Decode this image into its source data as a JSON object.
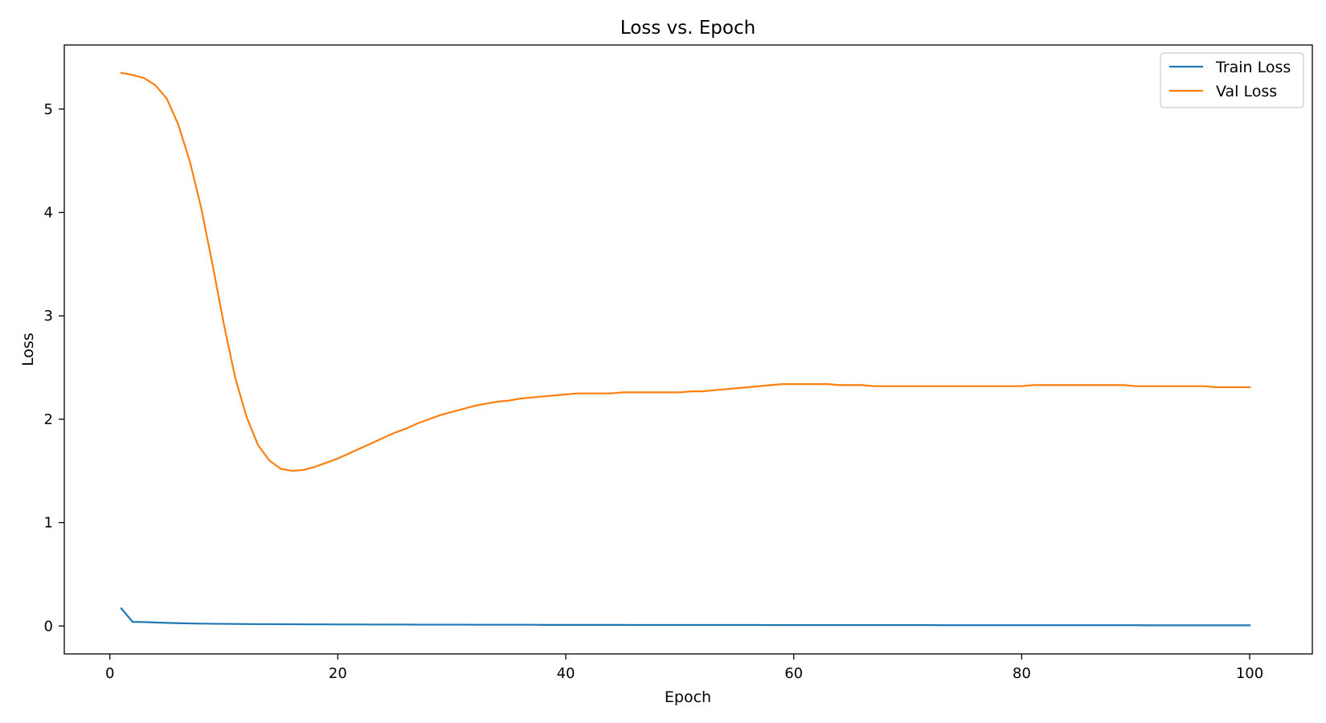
{
  "chart_data": {
    "type": "line",
    "title": "Loss vs. Epoch",
    "xlabel": "Epoch",
    "ylabel": "Loss",
    "xlim": [
      -4,
      105.5
    ],
    "ylim": [
      -0.27,
      5.62
    ],
    "xticks": [
      0,
      20,
      40,
      60,
      80,
      100
    ],
    "yticks": [
      0,
      1,
      2,
      3,
      4,
      5
    ],
    "grid": false,
    "legend_position": "top-right",
    "series": [
      {
        "name": "Train Loss",
        "color": "#1f77b4",
        "x_start": 1,
        "x_step": 1,
        "values": [
          0.17,
          0.04,
          0.038,
          0.034,
          0.03,
          0.027,
          0.025,
          0.023,
          0.022,
          0.021,
          0.02,
          0.019,
          0.018,
          0.018,
          0.017,
          0.017,
          0.016,
          0.016,
          0.016,
          0.015,
          0.015,
          0.015,
          0.014,
          0.014,
          0.014,
          0.014,
          0.013,
          0.013,
          0.013,
          0.013,
          0.013,
          0.012,
          0.012,
          0.012,
          0.012,
          0.012,
          0.012,
          0.011,
          0.011,
          0.011,
          0.011,
          0.011,
          0.011,
          0.011,
          0.011,
          0.01,
          0.01,
          0.01,
          0.01,
          0.01,
          0.01,
          0.01,
          0.01,
          0.01,
          0.01,
          0.01,
          0.01,
          0.009,
          0.009,
          0.009,
          0.009,
          0.009,
          0.009,
          0.009,
          0.009,
          0.009,
          0.009,
          0.009,
          0.009,
          0.009,
          0.009,
          0.009,
          0.008,
          0.008,
          0.008,
          0.008,
          0.008,
          0.008,
          0.008,
          0.008,
          0.008,
          0.008,
          0.008,
          0.008,
          0.008,
          0.008,
          0.008,
          0.008,
          0.008,
          0.008,
          0.007,
          0.007,
          0.007,
          0.007,
          0.007,
          0.007,
          0.007,
          0.007,
          0.007,
          0.007
        ]
      },
      {
        "name": "Val Loss",
        "color": "#ff7f0e",
        "x_start": 1,
        "x_step": 1,
        "values": [
          5.35,
          5.33,
          5.3,
          5.23,
          5.1,
          4.85,
          4.5,
          4.05,
          3.5,
          2.92,
          2.4,
          2.02,
          1.75,
          1.6,
          1.52,
          1.5,
          1.51,
          1.54,
          1.58,
          1.62,
          1.67,
          1.72,
          1.77,
          1.82,
          1.87,
          1.91,
          1.96,
          2.0,
          2.04,
          2.07,
          2.1,
          2.13,
          2.15,
          2.17,
          2.18,
          2.2,
          2.21,
          2.22,
          2.23,
          2.24,
          2.25,
          2.25,
          2.25,
          2.25,
          2.26,
          2.26,
          2.26,
          2.26,
          2.26,
          2.26,
          2.27,
          2.27,
          2.28,
          2.29,
          2.3,
          2.31,
          2.32,
          2.33,
          2.34,
          2.34,
          2.34,
          2.34,
          2.34,
          2.33,
          2.33,
          2.33,
          2.32,
          2.32,
          2.32,
          2.32,
          2.32,
          2.32,
          2.32,
          2.32,
          2.32,
          2.32,
          2.32,
          2.32,
          2.32,
          2.32,
          2.33,
          2.33,
          2.33,
          2.33,
          2.33,
          2.33,
          2.33,
          2.33,
          2.33,
          2.32,
          2.32,
          2.32,
          2.32,
          2.32,
          2.32,
          2.32,
          2.31,
          2.31,
          2.31,
          2.31
        ]
      }
    ]
  }
}
